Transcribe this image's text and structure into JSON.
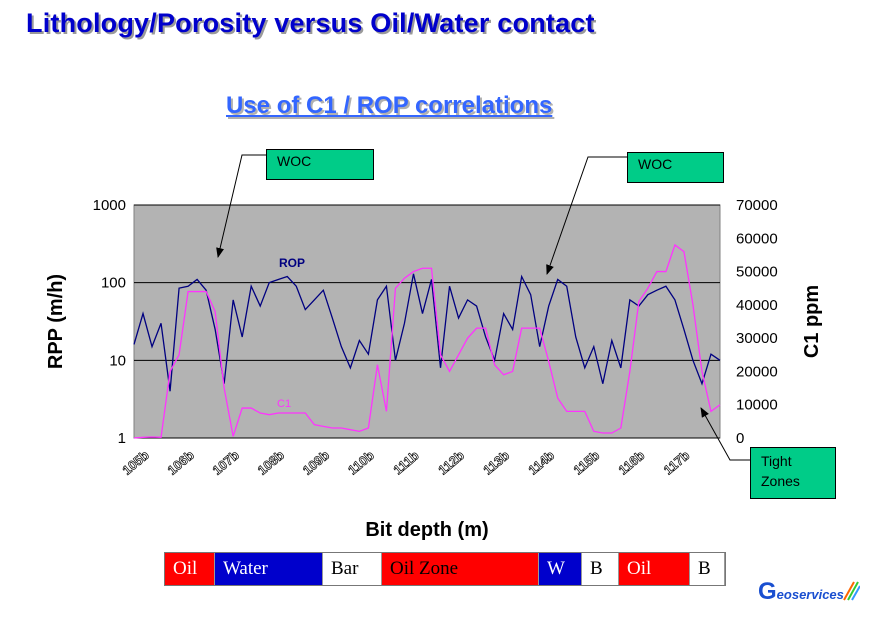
{
  "slide": {
    "title": "Lithology/Porosity  versus Oil/Water contact",
    "subtitle": "Use of  C1 / ROP correlations"
  },
  "callouts": [
    {
      "name": "woc-left",
      "text": "WOC"
    },
    {
      "name": "woc-right",
      "text": "WOC"
    },
    {
      "name": "tight-zones",
      "text": "Tight\nZones"
    }
  ],
  "zones": [
    {
      "label": "Oil",
      "bg": "#ff0000",
      "fg": "#ffffff",
      "width": 50
    },
    {
      "label": "Water",
      "bg": "#0000cc",
      "fg": "#ffffff",
      "width": 108
    },
    {
      "label": "Bar",
      "bg": "#ffffff",
      "fg": "#000000",
      "width": 59
    },
    {
      "label": "Oil Zone",
      "bg": "#ff0000",
      "fg": "#000000",
      "width": 157
    },
    {
      "label": "W",
      "bg": "#0000cc",
      "fg": "#ffffff",
      "width": 43
    },
    {
      "label": "B",
      "bg": "#ffffff",
      "fg": "#000000",
      "width": 37
    },
    {
      "label": "Oil",
      "bg": "#ff0000",
      "fg": "#ffffff",
      "width": 71
    },
    {
      "label": "B",
      "bg": "#ffffff",
      "fg": "#000000",
      "width": 35
    }
  ],
  "logo": {
    "text": "eoservices",
    "initial": "G"
  },
  "colors": {
    "title": "#0000cc",
    "subtitle": "#3366ff",
    "plot_bg": "#b3b3b3",
    "rop": "#000080",
    "c1": "#ff33ff",
    "callout": "#00cc88"
  },
  "chart_data": {
    "type": "line",
    "xlabel": "Bit depth (m)",
    "ylabel": "RPP (m/h)",
    "y2label": "C1 ppm",
    "xlim": [
      1050,
      1180
    ],
    "x_tick_labels": [
      "105b",
      "106b",
      "107b",
      "108b",
      "109b",
      "110b",
      "111b",
      "112b",
      "113b",
      "114b",
      "115b",
      "116b",
      "117b"
    ],
    "y_scale": "log",
    "ylim": [
      1,
      1000
    ],
    "y_ticks": [
      "1",
      "10",
      "100",
      "1000"
    ],
    "y2lim": [
      0,
      70000
    ],
    "y2_ticks": [
      "0",
      "10000",
      "20000",
      "30000",
      "40000",
      "50000",
      "60000",
      "70000"
    ],
    "grid": "horizontal major lines",
    "series": [
      {
        "name": "ROP",
        "axis": "left",
        "color": "#000080",
        "x": [
          1050,
          1052,
          1054,
          1056,
          1058,
          1060,
          1062,
          1064,
          1066,
          1068,
          1070,
          1072,
          1074,
          1076,
          1078,
          1080,
          1082,
          1084,
          1086,
          1088,
          1090,
          1092,
          1094,
          1096,
          1098,
          1100,
          1102,
          1104,
          1106,
          1108,
          1110,
          1112,
          1114,
          1116,
          1118,
          1120,
          1122,
          1124,
          1126,
          1128,
          1130,
          1132,
          1134,
          1136,
          1138,
          1140,
          1142,
          1144,
          1146,
          1148,
          1150,
          1152,
          1154,
          1156,
          1158,
          1160,
          1162,
          1164,
          1166,
          1168,
          1170,
          1172,
          1174,
          1176,
          1178,
          1180
        ],
        "y": [
          16,
          40,
          15,
          30,
          4,
          85,
          90,
          110,
          80,
          25,
          5,
          60,
          20,
          90,
          50,
          100,
          110,
          120,
          90,
          45,
          60,
          80,
          35,
          15,
          8,
          18,
          12,
          60,
          90,
          10,
          30,
          130,
          40,
          110,
          8,
          90,
          35,
          60,
          50,
          20,
          10,
          40,
          25,
          120,
          70,
          15,
          50,
          110,
          90,
          20,
          8,
          15,
          5,
          18,
          8,
          60,
          50,
          70,
          80,
          90,
          60,
          25,
          10,
          5,
          12,
          10
        ]
      },
      {
        "name": "C1",
        "axis": "right",
        "color": "#ff33ff",
        "x": [
          1050,
          1052,
          1054,
          1056,
          1058,
          1060,
          1062,
          1064,
          1066,
          1068,
          1070,
          1072,
          1074,
          1076,
          1078,
          1080,
          1082,
          1084,
          1086,
          1088,
          1090,
          1092,
          1094,
          1096,
          1098,
          1100,
          1102,
          1104,
          1106,
          1108,
          1110,
          1112,
          1114,
          1116,
          1118,
          1120,
          1122,
          1124,
          1126,
          1128,
          1130,
          1132,
          1134,
          1136,
          1138,
          1140,
          1142,
          1144,
          1146,
          1148,
          1150,
          1152,
          1154,
          1156,
          1158,
          1160,
          1162,
          1164,
          1166,
          1168,
          1170,
          1172,
          1174,
          1176,
          1178,
          1180
        ],
        "y": [
          0,
          200,
          300,
          200,
          20000,
          25000,
          44000,
          44000,
          44000,
          38000,
          15000,
          500,
          9000,
          9000,
          7500,
          7000,
          7500,
          7500,
          7500,
          7500,
          4000,
          3500,
          3000,
          3000,
          2500,
          2000,
          3000,
          22000,
          8000,
          45000,
          48000,
          50000,
          51000,
          51000,
          25000,
          20000,
          25000,
          30000,
          33000,
          33000,
          22000,
          19000,
          20000,
          33000,
          33000,
          33000,
          23000,
          12000,
          8000,
          8000,
          8000,
          2000,
          1500,
          1500,
          3000,
          20000,
          41000,
          45000,
          50000,
          50000,
          58000,
          56000,
          40000,
          20000,
          8000,
          10000
        ]
      }
    ]
  }
}
